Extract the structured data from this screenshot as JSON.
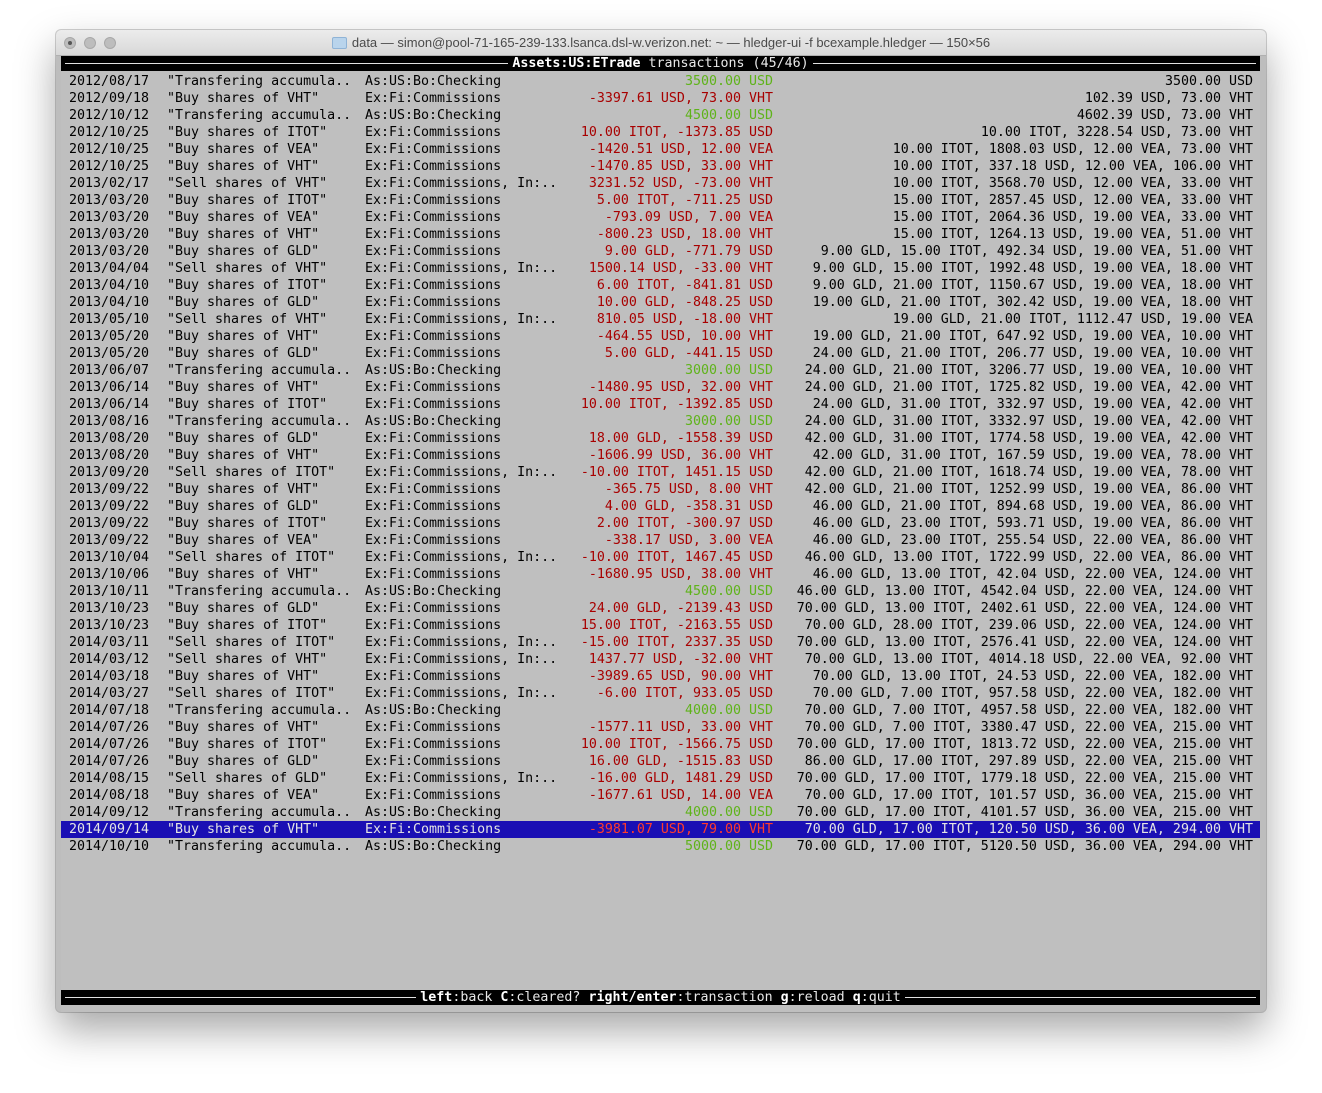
{
  "window": {
    "title": "data — simon@pool-71-165-239-133.lsanca.dsl-w.verizon.net: ~ — hledger-ui -f bcexample.hledger — 150×56"
  },
  "header": {
    "account": "Assets:US:ETrade",
    "suffix": " transactions (45/46)"
  },
  "colors": {
    "negative": "#a80000",
    "positive": "#5fb31a",
    "selection": "#1a0fb4"
  },
  "selected_index": 44,
  "rows": [
    [
      "2012/08/17",
      "\"Transfering accumula..",
      "As:US:Bo:Checking",
      "3500.00 USD",
      "3500.00 USD",
      "green"
    ],
    [
      "2012/09/18",
      "\"Buy shares of VHT\"",
      "Ex:Fi:Commissions",
      "-3397.61 USD, 73.00 VHT",
      "102.39 USD, 73.00 VHT",
      "red"
    ],
    [
      "2012/10/12",
      "\"Transfering accumula..",
      "As:US:Bo:Checking",
      "4500.00 USD",
      "4602.39 USD, 73.00 VHT",
      "green"
    ],
    [
      "2012/10/25",
      "\"Buy shares of ITOT\"",
      "Ex:Fi:Commissions",
      "10.00 ITOT, -1373.85 USD",
      "10.00 ITOT, 3228.54 USD, 73.00 VHT",
      "red"
    ],
    [
      "2012/10/25",
      "\"Buy shares of VEA\"",
      "Ex:Fi:Commissions",
      "-1420.51 USD, 12.00 VEA",
      "10.00 ITOT, 1808.03 USD, 12.00 VEA, 73.00 VHT",
      "red"
    ],
    [
      "2012/10/25",
      "\"Buy shares of VHT\"",
      "Ex:Fi:Commissions",
      "-1470.85 USD, 33.00 VHT",
      "10.00 ITOT, 337.18 USD, 12.00 VEA, 106.00 VHT",
      "red"
    ],
    [
      "2013/02/17",
      "\"Sell shares of VHT\"",
      "Ex:Fi:Commissions, In:..",
      "3231.52 USD, -73.00 VHT",
      "10.00 ITOT, 3568.70 USD, 12.00 VEA, 33.00 VHT",
      "red"
    ],
    [
      "2013/03/20",
      "\"Buy shares of ITOT\"",
      "Ex:Fi:Commissions",
      "5.00 ITOT, -711.25 USD",
      "15.00 ITOT, 2857.45 USD, 12.00 VEA, 33.00 VHT",
      "red"
    ],
    [
      "2013/03/20",
      "\"Buy shares of VEA\"",
      "Ex:Fi:Commissions",
      "-793.09 USD, 7.00 VEA",
      "15.00 ITOT, 2064.36 USD, 19.00 VEA, 33.00 VHT",
      "red"
    ],
    [
      "2013/03/20",
      "\"Buy shares of VHT\"",
      "Ex:Fi:Commissions",
      "-800.23 USD, 18.00 VHT",
      "15.00 ITOT, 1264.13 USD, 19.00 VEA, 51.00 VHT",
      "red"
    ],
    [
      "2013/03/20",
      "\"Buy shares of GLD\"",
      "Ex:Fi:Commissions",
      "9.00 GLD, -771.79 USD",
      "9.00 GLD, 15.00 ITOT, 492.34 USD, 19.00 VEA, 51.00 VHT",
      "red"
    ],
    [
      "2013/04/04",
      "\"Sell shares of VHT\"",
      "Ex:Fi:Commissions, In:..",
      "1500.14 USD, -33.00 VHT",
      "9.00 GLD, 15.00 ITOT, 1992.48 USD, 19.00 VEA, 18.00 VHT",
      "red"
    ],
    [
      "2013/04/10",
      "\"Buy shares of ITOT\"",
      "Ex:Fi:Commissions",
      "6.00 ITOT, -841.81 USD",
      "9.00 GLD, 21.00 ITOT, 1150.67 USD, 19.00 VEA, 18.00 VHT",
      "red"
    ],
    [
      "2013/04/10",
      "\"Buy shares of GLD\"",
      "Ex:Fi:Commissions",
      "10.00 GLD, -848.25 USD",
      "19.00 GLD, 21.00 ITOT, 302.42 USD, 19.00 VEA, 18.00 VHT",
      "red"
    ],
    [
      "2013/05/10",
      "\"Sell shares of VHT\"",
      "Ex:Fi:Commissions, In:..",
      "810.05 USD, -18.00 VHT",
      "19.00 GLD, 21.00 ITOT, 1112.47 USD, 19.00 VEA",
      "red"
    ],
    [
      "2013/05/20",
      "\"Buy shares of VHT\"",
      "Ex:Fi:Commissions",
      "-464.55 USD, 10.00 VHT",
      "19.00 GLD, 21.00 ITOT, 647.92 USD, 19.00 VEA, 10.00 VHT",
      "red"
    ],
    [
      "2013/05/20",
      "\"Buy shares of GLD\"",
      "Ex:Fi:Commissions",
      "5.00 GLD, -441.15 USD",
      "24.00 GLD, 21.00 ITOT, 206.77 USD, 19.00 VEA, 10.00 VHT",
      "red"
    ],
    [
      "2013/06/07",
      "\"Transfering accumula..",
      "As:US:Bo:Checking",
      "3000.00 USD",
      "24.00 GLD, 21.00 ITOT, 3206.77 USD, 19.00 VEA, 10.00 VHT",
      "green"
    ],
    [
      "2013/06/14",
      "\"Buy shares of VHT\"",
      "Ex:Fi:Commissions",
      "-1480.95 USD, 32.00 VHT",
      "24.00 GLD, 21.00 ITOT, 1725.82 USD, 19.00 VEA, 42.00 VHT",
      "red"
    ],
    [
      "2013/06/14",
      "\"Buy shares of ITOT\"",
      "Ex:Fi:Commissions",
      "10.00 ITOT, -1392.85 USD",
      "24.00 GLD, 31.00 ITOT, 332.97 USD, 19.00 VEA, 42.00 VHT",
      "red"
    ],
    [
      "2013/08/16",
      "\"Transfering accumula..",
      "As:US:Bo:Checking",
      "3000.00 USD",
      "24.00 GLD, 31.00 ITOT, 3332.97 USD, 19.00 VEA, 42.00 VHT",
      "green"
    ],
    [
      "2013/08/20",
      "\"Buy shares of GLD\"",
      "Ex:Fi:Commissions",
      "18.00 GLD, -1558.39 USD",
      "42.00 GLD, 31.00 ITOT, 1774.58 USD, 19.00 VEA, 42.00 VHT",
      "red"
    ],
    [
      "2013/08/20",
      "\"Buy shares of VHT\"",
      "Ex:Fi:Commissions",
      "-1606.99 USD, 36.00 VHT",
      "42.00 GLD, 31.00 ITOT, 167.59 USD, 19.00 VEA, 78.00 VHT",
      "red"
    ],
    [
      "2013/09/20",
      "\"Sell shares of ITOT\"",
      "Ex:Fi:Commissions, In:..",
      "-10.00 ITOT, 1451.15 USD",
      "42.00 GLD, 21.00 ITOT, 1618.74 USD, 19.00 VEA, 78.00 VHT",
      "red"
    ],
    [
      "2013/09/22",
      "\"Buy shares of VHT\"",
      "Ex:Fi:Commissions",
      "-365.75 USD, 8.00 VHT",
      "42.00 GLD, 21.00 ITOT, 1252.99 USD, 19.00 VEA, 86.00 VHT",
      "red"
    ],
    [
      "2013/09/22",
      "\"Buy shares of GLD\"",
      "Ex:Fi:Commissions",
      "4.00 GLD, -358.31 USD",
      "46.00 GLD, 21.00 ITOT, 894.68 USD, 19.00 VEA, 86.00 VHT",
      "red"
    ],
    [
      "2013/09/22",
      "\"Buy shares of ITOT\"",
      "Ex:Fi:Commissions",
      "2.00 ITOT, -300.97 USD",
      "46.00 GLD, 23.00 ITOT, 593.71 USD, 19.00 VEA, 86.00 VHT",
      "red"
    ],
    [
      "2013/09/22",
      "\"Buy shares of VEA\"",
      "Ex:Fi:Commissions",
      "-338.17 USD, 3.00 VEA",
      "46.00 GLD, 23.00 ITOT, 255.54 USD, 22.00 VEA, 86.00 VHT",
      "red"
    ],
    [
      "2013/10/04",
      "\"Sell shares of ITOT\"",
      "Ex:Fi:Commissions, In:..",
      "-10.00 ITOT, 1467.45 USD",
      "46.00 GLD, 13.00 ITOT, 1722.99 USD, 22.00 VEA, 86.00 VHT",
      "red"
    ],
    [
      "2013/10/06",
      "\"Buy shares of VHT\"",
      "Ex:Fi:Commissions",
      "-1680.95 USD, 38.00 VHT",
      "46.00 GLD, 13.00 ITOT, 42.04 USD, 22.00 VEA, 124.00 VHT",
      "red"
    ],
    [
      "2013/10/11",
      "\"Transfering accumula..",
      "As:US:Bo:Checking",
      "4500.00 USD",
      "46.00 GLD, 13.00 ITOT, 4542.04 USD, 22.00 VEA, 124.00 VHT",
      "green"
    ],
    [
      "2013/10/23",
      "\"Buy shares of GLD\"",
      "Ex:Fi:Commissions",
      "24.00 GLD, -2139.43 USD",
      "70.00 GLD, 13.00 ITOT, 2402.61 USD, 22.00 VEA, 124.00 VHT",
      "red"
    ],
    [
      "2013/10/23",
      "\"Buy shares of ITOT\"",
      "Ex:Fi:Commissions",
      "15.00 ITOT, -2163.55 USD",
      "70.00 GLD, 28.00 ITOT, 239.06 USD, 22.00 VEA, 124.00 VHT",
      "red"
    ],
    [
      "2014/03/11",
      "\"Sell shares of ITOT\"",
      "Ex:Fi:Commissions, In:..",
      "-15.00 ITOT, 2337.35 USD",
      "70.00 GLD, 13.00 ITOT, 2576.41 USD, 22.00 VEA, 124.00 VHT",
      "red"
    ],
    [
      "2014/03/12",
      "\"Sell shares of VHT\"",
      "Ex:Fi:Commissions, In:..",
      "1437.77 USD, -32.00 VHT",
      "70.00 GLD, 13.00 ITOT, 4014.18 USD, 22.00 VEA, 92.00 VHT",
      "red"
    ],
    [
      "2014/03/18",
      "\"Buy shares of VHT\"",
      "Ex:Fi:Commissions",
      "-3989.65 USD, 90.00 VHT",
      "70.00 GLD, 13.00 ITOT, 24.53 USD, 22.00 VEA, 182.00 VHT",
      "red"
    ],
    [
      "2014/03/27",
      "\"Sell shares of ITOT\"",
      "Ex:Fi:Commissions, In:..",
      "-6.00 ITOT, 933.05 USD",
      "70.00 GLD, 7.00 ITOT, 957.58 USD, 22.00 VEA, 182.00 VHT",
      "red"
    ],
    [
      "2014/07/18",
      "\"Transfering accumula..",
      "As:US:Bo:Checking",
      "4000.00 USD",
      "70.00 GLD, 7.00 ITOT, 4957.58 USD, 22.00 VEA, 182.00 VHT",
      "green"
    ],
    [
      "2014/07/26",
      "\"Buy shares of VHT\"",
      "Ex:Fi:Commissions",
      "-1577.11 USD, 33.00 VHT",
      "70.00 GLD, 7.00 ITOT, 3380.47 USD, 22.00 VEA, 215.00 VHT",
      "red"
    ],
    [
      "2014/07/26",
      "\"Buy shares of ITOT\"",
      "Ex:Fi:Commissions",
      "10.00 ITOT, -1566.75 USD",
      "70.00 GLD, 17.00 ITOT, 1813.72 USD, 22.00 VEA, 215.00 VHT",
      "red"
    ],
    [
      "2014/07/26",
      "\"Buy shares of GLD\"",
      "Ex:Fi:Commissions",
      "16.00 GLD, -1515.83 USD",
      "86.00 GLD, 17.00 ITOT, 297.89 USD, 22.00 VEA, 215.00 VHT",
      "red"
    ],
    [
      "2014/08/15",
      "\"Sell shares of GLD\"",
      "Ex:Fi:Commissions, In:..",
      "-16.00 GLD, 1481.29 USD",
      "70.00 GLD, 17.00 ITOT, 1779.18 USD, 22.00 VEA, 215.00 VHT",
      "red"
    ],
    [
      "2014/08/18",
      "\"Buy shares of VEA\"",
      "Ex:Fi:Commissions",
      "-1677.61 USD, 14.00 VEA",
      "70.00 GLD, 17.00 ITOT, 101.57 USD, 36.00 VEA, 215.00 VHT",
      "red"
    ],
    [
      "2014/09/12",
      "\"Transfering accumula..",
      "As:US:Bo:Checking",
      "4000.00 USD",
      "70.00 GLD, 17.00 ITOT, 4101.57 USD, 36.00 VEA, 215.00 VHT",
      "green"
    ],
    [
      "2014/09/14",
      "\"Buy shares of VHT\"",
      "Ex:Fi:Commissions",
      "-3981.07 USD, 79.00 VHT",
      "70.00 GLD, 17.00 ITOT, 120.50 USD, 36.00 VEA, 294.00 VHT",
      "red"
    ],
    [
      "2014/10/10",
      "\"Transfering accumula..",
      "As:US:Bo:Checking",
      "5000.00 USD",
      "70.00 GLD, 17.00 ITOT, 5120.50 USD, 36.00 VEA, 294.00 VHT",
      "green"
    ]
  ],
  "footer": [
    {
      "key": "left",
      "label": ":back"
    },
    {
      "key": "C",
      "label": ":cleared?"
    },
    {
      "key": "right/enter",
      "label": ":transaction"
    },
    {
      "key": "g",
      "label": ":reload"
    },
    {
      "key": "q",
      "label": ":quit"
    }
  ]
}
